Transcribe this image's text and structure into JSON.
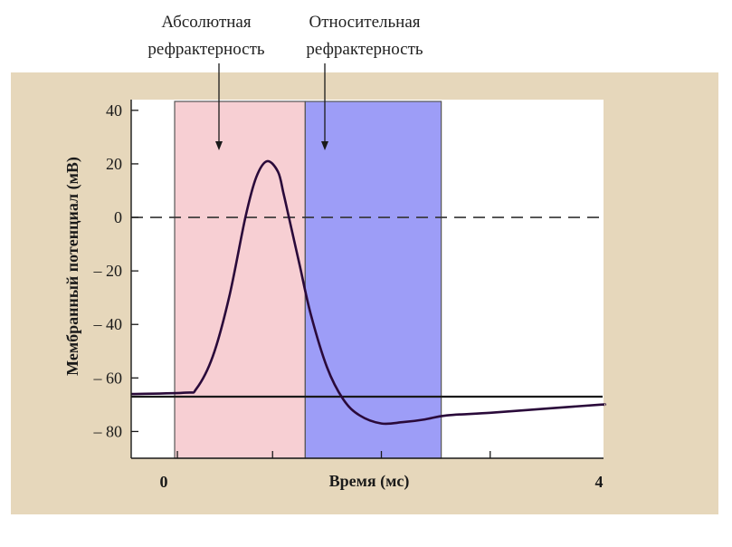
{
  "chart_data": {
    "type": "line",
    "title": "",
    "xlabel": "Время (мс)",
    "ylabel": "Мембранный потенциал (мВ)",
    "xlim": [
      0,
      4
    ],
    "ylim": [
      -90,
      44
    ],
    "x_ticks": [
      {
        "value": 0,
        "label": "0"
      },
      {
        "value": 4,
        "label": "4"
      }
    ],
    "x_minor_ticks": [
      0.125,
      1,
      2,
      3
    ],
    "y_ticks": [
      {
        "value": 40,
        "label": "40"
      },
      {
        "value": 20,
        "label": "20"
      },
      {
        "value": 0,
        "label": "0"
      },
      {
        "value": -20,
        "label": "– 20"
      },
      {
        "value": -40,
        "label": "– 40"
      },
      {
        "value": -60,
        "label": "– 60"
      },
      {
        "value": -80,
        "label": "– 80"
      }
    ],
    "reference_lines": [
      {
        "y": 0,
        "style": "dashed",
        "color": "#333333"
      },
      {
        "y": -67,
        "style": "solid",
        "color": "#1a1a1a"
      }
    ],
    "regions": [
      {
        "label": "Абсолютная\nрефрактерность",
        "x_start": 0.1,
        "x_end": 1.3,
        "color": "#f7cfd3",
        "stroke": "#555555"
      },
      {
        "label": "Относительная\nрефрактерность",
        "x_start": 1.3,
        "x_end": 2.55,
        "color": "#9d9df7",
        "stroke": "#555555"
      }
    ],
    "series": [
      {
        "name": "",
        "color": "#2a0a3a",
        "x": [
          -0.3,
          0.2,
          0.3,
          0.45,
          0.6,
          0.75,
          0.85,
          0.95,
          1.05,
          1.1,
          1.15,
          1.25,
          1.35,
          1.5,
          1.65,
          1.8,
          2.0,
          2.2,
          2.4,
          2.6,
          3.0,
          3.5,
          4.0,
          4.05
        ],
        "y": [
          -66,
          -65.5,
          -64,
          -52,
          -30,
          0,
          15,
          21,
          17,
          9,
          0,
          -18,
          -36,
          -56,
          -68,
          -74,
          -77,
          -76.5,
          -75.5,
          -74,
          -73,
          -71.5,
          -70,
          -70
        ]
      }
    ]
  },
  "colors": {
    "frame_background": "#e6d7bb",
    "plot_background": "#ffffff",
    "absolute_refractory": "#f7cfd3",
    "relative_refractory": "#9d9df7",
    "curve": "#2a0a3a"
  }
}
